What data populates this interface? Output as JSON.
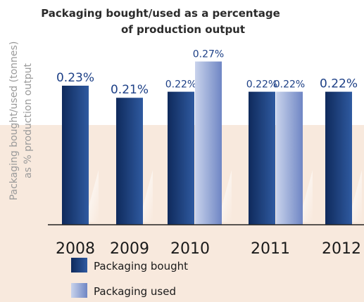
{
  "chart_data": {
    "type": "bar",
    "title_lines": [
      "Packaging bought/used as a percentage",
      "of production output"
    ],
    "ylabel_lines": [
      "Packaging bought/used (tonnes)",
      "as % production output"
    ],
    "xlabel": "",
    "categories": [
      "2008",
      "2009",
      "2010",
      "2011",
      "2012"
    ],
    "series": [
      {
        "name": "Packaging bought",
        "values": [
          0.23,
          0.21,
          0.22,
          0.22,
          0.22
        ],
        "labels": [
          "0.23%",
          "0.21%",
          "0.22%",
          "0.22%",
          "0.22%"
        ]
      },
      {
        "name": "Packaging used",
        "values": [
          null,
          null,
          0.27,
          0.22,
          null
        ],
        "labels": [
          "",
          "",
          "0.27%",
          "0.22%",
          ""
        ]
      }
    ],
    "ylim": [
      0,
      0.27
    ],
    "grid": false,
    "legend_position": "bottom-left",
    "colors": {
      "bought_dark": "#0f2a5c",
      "bought_light": "#2f5aa0",
      "used_light": "#c9d3ec",
      "used_dark": "#6f86c4",
      "background_band": "#f8e9dd",
      "label_color": "#1c3f86"
    }
  }
}
